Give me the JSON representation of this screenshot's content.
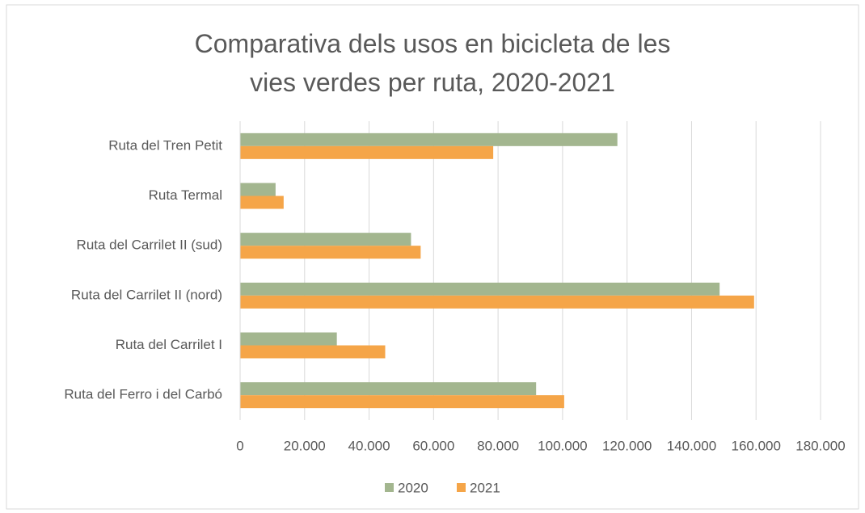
{
  "chart_data": {
    "type": "bar",
    "orientation": "horizontal",
    "title": "Comparativa dels usos en bicicleta de les vies verdes per ruta, 2020-2021",
    "categories": [
      "Ruta del Tren Petit",
      "Ruta Termal",
      "Ruta del Carrilet II (sud)",
      "Ruta del Carrilet II (nord)",
      "Ruta del Carrilet I",
      "Ruta del Ferro i del Carbó"
    ],
    "series": [
      {
        "name": "2020",
        "color": "#a3b68f",
        "values": [
          117000,
          11000,
          53000,
          148700,
          30000,
          91800
        ]
      },
      {
        "name": "2021",
        "color": "#f5a548",
        "values": [
          78500,
          13500,
          56000,
          159400,
          45000,
          100500
        ]
      }
    ],
    "xlim": [
      0,
      180000
    ],
    "xticks": [
      0,
      {
        "value": 20000,
        "label": "20.000"
      },
      {
        "value": 40000,
        "label": "40.000"
      },
      {
        "value": 60000,
        "label": "60.000"
      },
      {
        "value": 80000,
        "label": "80.000"
      },
      {
        "value": 100000,
        "label": "100.000"
      },
      {
        "value": 120000,
        "label": "120.000"
      },
      {
        "value": 140000,
        "label": "140.000"
      },
      {
        "value": 160000,
        "label": "160.000"
      },
      {
        "value": 180000,
        "label": "180.000"
      }
    ],
    "grid": true,
    "legend": "bottom"
  }
}
